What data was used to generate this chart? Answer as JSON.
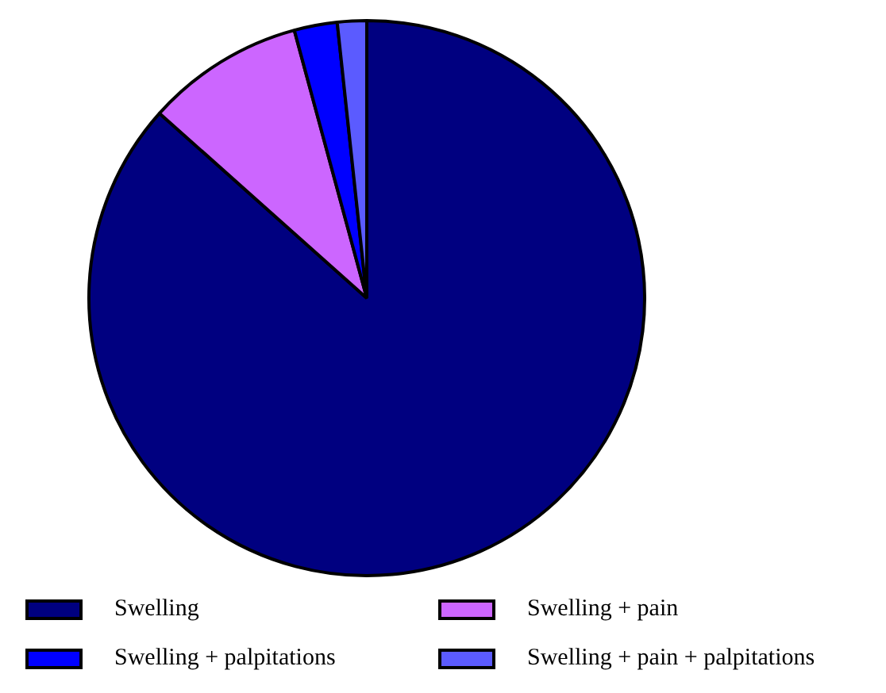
{
  "chart_data": {
    "type": "pie",
    "categories": [
      "Swelling",
      "Swelling + pain",
      "Swelling + palpitations",
      "Swelling + pain + palpitations"
    ],
    "values": [
      86.6,
      9.2,
      2.5,
      1.7
    ],
    "colors": [
      "#000080",
      "#cc66ff",
      "#0000ff",
      "#5b5bff"
    ],
    "legend": "bottom"
  }
}
